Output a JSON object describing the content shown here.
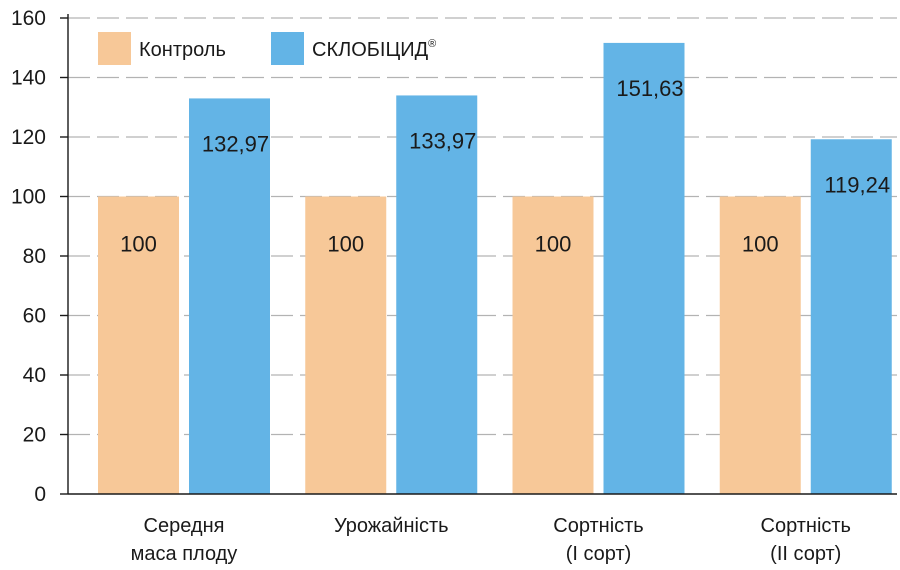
{
  "chart_data": {
    "type": "bar",
    "categories": [
      [
        "Середня",
        "маса плоду"
      ],
      [
        "Урожайність"
      ],
      [
        "Сортність",
        "(І сорт)"
      ],
      [
        "Сортність",
        "(ІІ сорт)"
      ]
    ],
    "series": [
      {
        "name": "Контроль",
        "color": "#f7c898",
        "values": [
          100,
          100,
          100,
          100
        ],
        "labels": [
          "100",
          "100",
          "100",
          "100"
        ]
      },
      {
        "name": "СКЛОБІЦИД",
        "name_superscript": "®",
        "color": "#63b4e6",
        "values": [
          132.97,
          133.97,
          151.63,
          119.24
        ],
        "labels": [
          "132,97",
          "133,97",
          "151,63",
          "119,24"
        ]
      }
    ],
    "ylim": [
      0,
      160
    ],
    "yticks": [
      0,
      20,
      40,
      60,
      80,
      100,
      120,
      140,
      160
    ],
    "grid": "dashed-horizontal",
    "legend": "top-left",
    "title": "",
    "xlabel": "",
    "ylabel": ""
  }
}
